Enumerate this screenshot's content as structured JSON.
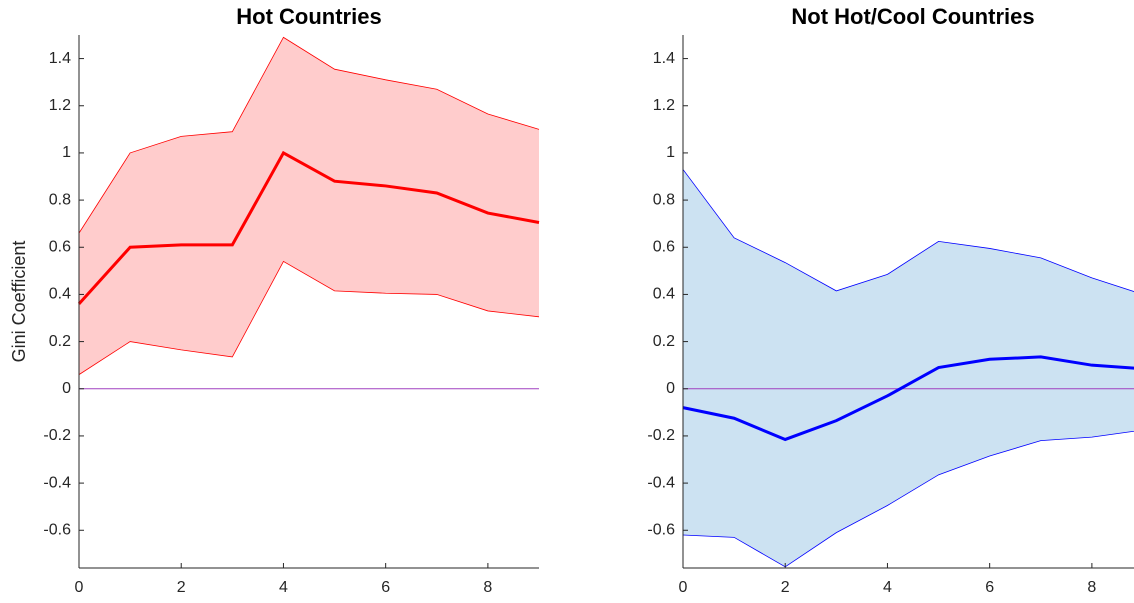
{
  "chart_data": [
    {
      "type": "line",
      "title": "Hot Countries",
      "ylabel": "Gini Coefficient",
      "x": [
        0,
        1,
        2,
        3,
        4,
        5,
        6,
        7,
        8,
        9
      ],
      "values": [
        0.36,
        0.6,
        0.61,
        0.61,
        1.0,
        0.88,
        0.86,
        0.83,
        0.745,
        0.705
      ],
      "band_upper": [
        0.66,
        1.0,
        1.07,
        1.09,
        1.49,
        1.355,
        1.31,
        1.27,
        1.165,
        1.1
      ],
      "band_lower": [
        0.06,
        0.2,
        0.165,
        0.135,
        0.54,
        0.415,
        0.405,
        0.4,
        0.33,
        0.305
      ],
      "color": "#ff0000",
      "band_color": "#ffcccc",
      "reference_line": 0,
      "reference_color": "#a040c0",
      "xlim": [
        0,
        9
      ],
      "ylim": [
        -0.76,
        1.5
      ],
      "xticks": [
        0,
        2,
        4,
        6,
        8
      ],
      "yticks": [
        -0.6,
        -0.4,
        -0.2,
        0,
        0.2,
        0.4,
        0.6,
        0.8,
        1,
        1.2,
        1.4
      ]
    },
    {
      "type": "line",
      "title": "Not Hot/Cool Countries",
      "x": [
        0,
        1,
        2,
        3,
        4,
        5,
        6,
        7,
        8,
        9
      ],
      "values": [
        -0.08,
        -0.125,
        -0.215,
        -0.135,
        -0.03,
        0.09,
        0.125,
        0.135,
        0.1,
        0.085
      ],
      "band_upper": [
        0.93,
        0.64,
        0.535,
        0.415,
        0.485,
        0.625,
        0.595,
        0.555,
        0.47,
        0.4
      ],
      "band_lower": [
        -0.62,
        -0.63,
        -0.755,
        -0.61,
        -0.495,
        -0.365,
        -0.285,
        -0.22,
        -0.205,
        -0.175
      ],
      "color": "#0000ff",
      "band_color": "#cce2f2",
      "reference_line": 0,
      "reference_color": "#a040c0",
      "xlim": [
        0,
        9
      ],
      "ylim": [
        -0.76,
        1.5
      ],
      "xticks": [
        0,
        2,
        4,
        6,
        8
      ],
      "yticks": [
        -0.6,
        -0.4,
        -0.2,
        0,
        0.2,
        0.4,
        0.6,
        0.8,
        1,
        1.2,
        1.4
      ]
    }
  ]
}
